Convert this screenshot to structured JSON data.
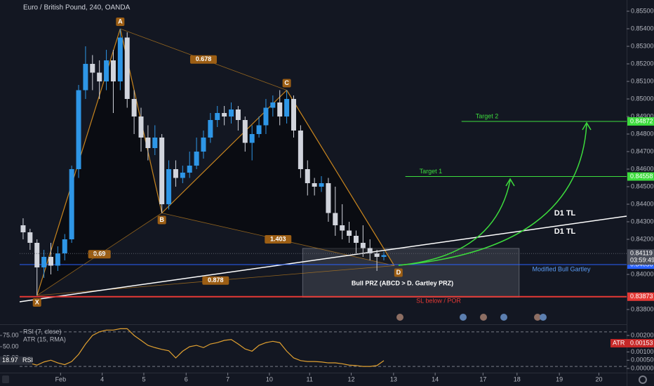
{
  "chart_data": {
    "type": "candlestick",
    "title": "Euro / British Pound, 240, OANDA",
    "up_color": "#2e96e6",
    "down_color": "#d1d4dc",
    "open": [
      0.8428,
      0.8424,
      0.8418,
      0.8404,
      0.841,
      0.8405,
      0.8412,
      0.842,
      0.846,
      0.8505,
      0.852,
      0.8515,
      0.851,
      0.8522,
      0.851,
      0.8535,
      0.85,
      0.849,
      0.8478,
      0.8472,
      0.8478,
      0.844,
      0.846,
      0.8455,
      0.8458,
      0.8462,
      0.847,
      0.8478,
      0.8488,
      0.8492,
      0.849,
      0.8494,
      0.8488,
      0.8475,
      0.848,
      0.8485,
      0.8495,
      0.8498,
      0.849,
      0.85,
      0.8482,
      0.846,
      0.8452,
      0.845,
      0.8452,
      0.8435,
      0.8428,
      0.8425,
      0.8422,
      0.8418,
      0.8415,
      0.8412,
      0.841
    ],
    "high": [
      0.8432,
      0.8426,
      0.842,
      0.8414,
      0.8418,
      0.8416,
      0.8423,
      0.8462,
      0.8508,
      0.853,
      0.8525,
      0.8522,
      0.8528,
      0.8528,
      0.854,
      0.8538,
      0.8505,
      0.8495,
      0.8485,
      0.8485,
      0.848,
      0.8465,
      0.8465,
      0.8462,
      0.847,
      0.8478,
      0.8482,
      0.8492,
      0.8496,
      0.8496,
      0.8498,
      0.8496,
      0.849,
      0.8485,
      0.849,
      0.85,
      0.8502,
      0.8505,
      0.8505,
      0.8502,
      0.8485,
      0.8465,
      0.8455,
      0.8456,
      0.8455,
      0.845,
      0.844,
      0.843,
      0.8425,
      0.8428,
      0.842,
      0.8414,
      0.8413
    ],
    "low": [
      0.842,
      0.8414,
      0.8388,
      0.8398,
      0.84,
      0.8402,
      0.8408,
      0.8418,
      0.8455,
      0.85,
      0.8505,
      0.85,
      0.8505,
      0.8492,
      0.8505,
      0.8495,
      0.848,
      0.847,
      0.8465,
      0.8468,
      0.8435,
      0.8437,
      0.845,
      0.8452,
      0.8455,
      0.846,
      0.8466,
      0.8475,
      0.8484,
      0.8485,
      0.8486,
      0.8482,
      0.847,
      0.8465,
      0.8478,
      0.848,
      0.849,
      0.8485,
      0.8486,
      0.8478,
      0.8455,
      0.8445,
      0.8445,
      0.8447,
      0.843,
      0.8422,
      0.842,
      0.8418,
      0.8412,
      0.841,
      0.8408,
      0.8402,
      0.8408
    ],
    "close": [
      0.8424,
      0.8418,
      0.8404,
      0.841,
      0.8405,
      0.8412,
      0.842,
      0.846,
      0.8505,
      0.852,
      0.8515,
      0.851,
      0.8522,
      0.851,
      0.8535,
      0.85,
      0.849,
      0.8478,
      0.8472,
      0.8478,
      0.844,
      0.846,
      0.8455,
      0.8458,
      0.8462,
      0.847,
      0.8478,
      0.8488,
      0.8492,
      0.849,
      0.8494,
      0.8488,
      0.8475,
      0.848,
      0.8485,
      0.8495,
      0.8498,
      0.849,
      0.85,
      0.8482,
      0.846,
      0.8452,
      0.845,
      0.8452,
      0.8435,
      0.8428,
      0.8425,
      0.8422,
      0.8418,
      0.8415,
      0.8412,
      0.841,
      0.8411
    ],
    "xlim": [
      -0.5,
      87
    ],
    "xticks": [
      {
        "value": 5.4,
        "label": "Feb"
      },
      {
        "value": 11.4,
        "label": "4"
      },
      {
        "value": 17.4,
        "label": "5"
      },
      {
        "value": 23.5,
        "label": "6"
      },
      {
        "value": 29.5,
        "label": "7"
      },
      {
        "value": 35.5,
        "label": "10"
      },
      {
        "value": 41.3,
        "label": "11"
      },
      {
        "value": 47.3,
        "label": "12"
      },
      {
        "value": 53.4,
        "label": "13"
      },
      {
        "value": 59.4,
        "label": "14"
      },
      {
        "value": 66.3,
        "label": "17"
      },
      {
        "value": 71.2,
        "label": "18"
      },
      {
        "value": 77.3,
        "label": "19"
      },
      {
        "value": 83.0,
        "label": "20"
      }
    ],
    "ylim": [
      0.83744,
      0.85564
    ],
    "yticks": [
      {
        "value": 0.855,
        "label": "0.85500"
      },
      {
        "value": 0.854,
        "label": "0.85400"
      },
      {
        "value": 0.853,
        "label": "0.85300"
      },
      {
        "value": 0.852,
        "label": "0.85200"
      },
      {
        "value": 0.851,
        "label": "0.85100"
      },
      {
        "value": 0.85,
        "label": "0.85000"
      },
      {
        "value": 0.849,
        "label": "0.84900"
      },
      {
        "value": 0.848,
        "label": "0.84800"
      },
      {
        "value": 0.847,
        "label": "0.84700"
      },
      {
        "value": 0.846,
        "label": "0.84600"
      },
      {
        "value": 0.845,
        "label": "0.84500"
      },
      {
        "value": 0.844,
        "label": "0.84400"
      },
      {
        "value": 0.843,
        "label": "0.84300"
      },
      {
        "value": 0.842,
        "label": "0.84200"
      },
      {
        "value": 0.84,
        "label": "0.84000"
      },
      {
        "value": 0.838,
        "label": "0.83800"
      }
    ],
    "pattern": {
      "color": "#c8851e",
      "points": [
        {
          "label": "X",
          "x": 2,
          "y": 0.8388
        },
        {
          "label": "A",
          "x": 14,
          "y": 0.854
        },
        {
          "label": "B",
          "x": 20,
          "y": 0.8435
        },
        {
          "label": "C",
          "x": 38,
          "y": 0.8505
        },
        {
          "label": "D",
          "x": 53.5,
          "y": 0.8405
        }
      ],
      "ratios": [
        {
          "label": "0.69",
          "from": "X",
          "to": "B"
        },
        {
          "label": "0.678",
          "from": "A",
          "to": "C"
        },
        {
          "label": "1.403",
          "from": "B",
          "to": "D"
        },
        {
          "label": "0.878",
          "from": "X",
          "to": "D"
        }
      ]
    },
    "trendline": {
      "labels": [
        "D1 TL",
        "D1 TL"
      ],
      "x": [
        -0.5,
        87
      ],
      "y": [
        0.83844,
        0.84332
      ],
      "color": "#ffffff"
    },
    "levels": [
      {
        "label": "Target 2",
        "value": 0.84872,
        "value_label": "0.84872",
        "x_start": 63.2,
        "color": "#3ddc3d"
      },
      {
        "label": "Target 1",
        "value": 0.84558,
        "value_label": "0.84558",
        "x_start": 55.1,
        "color": "#3ddc3d"
      },
      {
        "label": "Modified Bull Gartley",
        "value": 0.84056,
        "value_label": "0.84056",
        "color": "#2962ff"
      },
      {
        "label": "SL below / POR",
        "value": 0.83873,
        "value_label": "0.83873",
        "color": "#e53935"
      }
    ],
    "prz": {
      "label": "Bull PRZ (ABCD > D. Gartley PRZ)",
      "x": [
        40.3,
        71.5
      ],
      "y": [
        0.8387,
        0.84148
      ]
    },
    "last_price": {
      "value": 0.84119,
      "label": "0.84119",
      "countdown": "03:59:49"
    },
    "indicator": {
      "labels": [
        "RSI (7, close)",
        "ATR (15, RMA)"
      ],
      "series": [
        {
          "name": "RSI",
          "color": "#e0a030",
          "values": [
            17,
            13,
            9,
            16,
            20,
            14,
            10,
            17,
            33,
            56,
            75,
            83,
            87,
            87,
            90,
            90,
            75,
            64,
            53,
            48,
            44,
            41,
            25,
            40,
            50,
            53,
            48,
            56,
            59,
            64,
            66,
            56,
            45,
            40,
            53,
            59,
            62,
            59,
            40,
            25,
            19,
            17,
            17,
            16,
            14,
            14,
            12,
            9,
            8,
            6,
            6,
            8,
            18.97
          ]
        }
      ],
      "ylim": [
        -6.25,
        98.4
      ],
      "yticks": [
        {
          "value": 75,
          "label": "75.00"
        },
        {
          "value": 50,
          "label": "50.00"
        },
        {
          "value": 25,
          "label": "25.00"
        }
      ],
      "bands": [
        83,
        6
      ],
      "atr": {
        "name": "ATR",
        "value": 0.00153,
        "value_label": "0.00153"
      },
      "y2lim": [
        -0.000213,
        0.002638
      ],
      "y2ticks": [
        {
          "value": 0.002,
          "label": "0.00200"
        },
        {
          "value": 0.001,
          "label": "0.00100"
        },
        {
          "value": 0.0005,
          "label": "0.00050"
        },
        {
          "value": 0,
          "label": "0.00000"
        }
      ]
    }
  }
}
